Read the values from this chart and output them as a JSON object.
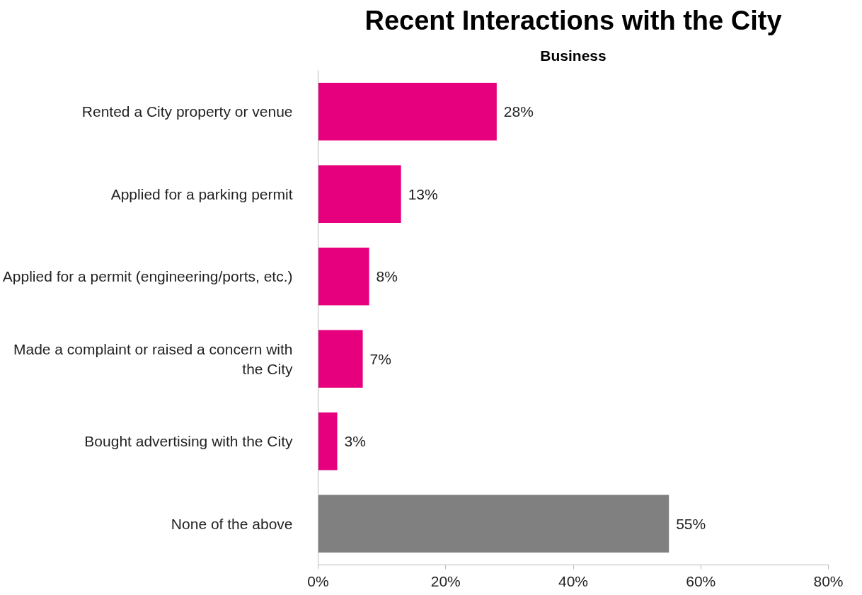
{
  "chart_data": {
    "type": "bar",
    "orientation": "horizontal",
    "title": "Recent Interactions with the City",
    "subtitle": "Business",
    "categories": [
      "Rented a City property or venue",
      "Applied for a parking permit",
      "Applied for a permit (engineering/ports, etc.)",
      "Made a complaint or raised a concern with\nthe City",
      "Bought advertising with the City",
      "None of the above"
    ],
    "values": [
      28,
      13,
      8,
      7,
      3,
      55
    ],
    "colors": [
      "#e6007e",
      "#e6007e",
      "#e6007e",
      "#e6007e",
      "#e6007e",
      "#808080"
    ],
    "value_labels": [
      "28%",
      "13%",
      "8%",
      "7%",
      "3%",
      "55%"
    ],
    "xlim": [
      0,
      80
    ],
    "xticks": [
      {
        "value": 0,
        "label": "0%"
      },
      {
        "value": 20,
        "label": "20%"
      },
      {
        "value": 40,
        "label": "40%"
      },
      {
        "value": 60,
        "label": "60%"
      },
      {
        "value": 80,
        "label": "80%"
      }
    ],
    "grid": false
  }
}
